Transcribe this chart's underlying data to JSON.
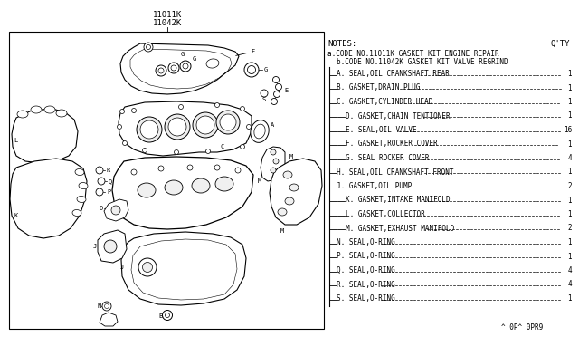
{
  "background_color": "#ffffff",
  "text_color": "#000000",
  "line_color": "#000000",
  "title_line1": "11011K",
  "title_line2": "11042K",
  "notes_header": "NOTES:",
  "qty_header": "Q'TY",
  "note_a": "a.CODE NO.11011K GASKET KIT ENGINE REPAIR",
  "note_b": "b.CODE NO.11042K GASKET KIT VALVE REGRIND",
  "parts": [
    {
      "label": "A",
      "desc": "SEAL,OIL CRANKSHAFT REAR",
      "qty": "1",
      "indent": 1,
      "dash": false
    },
    {
      "label": "B",
      "desc": "GASKET,DRAIN PLUG",
      "qty": "1",
      "indent": 1,
      "dash": false
    },
    {
      "label": "C",
      "desc": "GASKET,CYLINDER HEAD",
      "qty": "1",
      "indent": 1,
      "dash": false
    },
    {
      "label": "D",
      "desc": "GASKET,CHAIN TENTIONER",
      "qty": "1",
      "indent": 1,
      "dash": true
    },
    {
      "label": "E",
      "desc": "SEAL,OIL VALVE",
      "qty": "16",
      "indent": 1,
      "dash": true
    },
    {
      "label": "F",
      "desc": "GASKET,ROCKER COVER",
      "qty": "1",
      "indent": 1,
      "dash": true
    },
    {
      "label": "G",
      "desc": "SEAL ROCKER COVER",
      "qty": "4",
      "indent": 1,
      "dash": true
    },
    {
      "label": "H",
      "desc": "SEAL,OIL CRANKSHAFT FRONT",
      "qty": "1",
      "indent": 1,
      "dash": false
    },
    {
      "label": "J",
      "desc": "GASKET,OIL PUMP",
      "qty": "2",
      "indent": 1,
      "dash": false
    },
    {
      "label": "K",
      "desc": "GASKET,INTAKE MANIFOLD",
      "qty": "1",
      "indent": 1,
      "dash": true
    },
    {
      "label": "L",
      "desc": "GASKET,COLLECTOR",
      "qty": "1",
      "indent": 1,
      "dash": true
    },
    {
      "label": "M",
      "desc": "GASKET,EXHAUST MANIFOLD",
      "qty": "2",
      "indent": 1,
      "dash": true
    },
    {
      "label": "N",
      "desc": "SEAL,O-RING",
      "qty": "1",
      "indent": 1,
      "dash": false
    },
    {
      "label": "P",
      "desc": "SEAL,O-RING",
      "qty": "1",
      "indent": 1,
      "dash": false
    },
    {
      "label": "Q",
      "desc": "SEAL,O-RING",
      "qty": "4",
      "indent": 1,
      "dash": false
    },
    {
      "label": "R",
      "desc": "SEAL,O-RING",
      "qty": "4",
      "indent": 1,
      "dash": false
    },
    {
      "label": "S",
      "desc": "SEAL,O-RING",
      "qty": "1",
      "indent": 1,
      "dash": false
    }
  ],
  "footer": "^ 0P^ 0PR9"
}
